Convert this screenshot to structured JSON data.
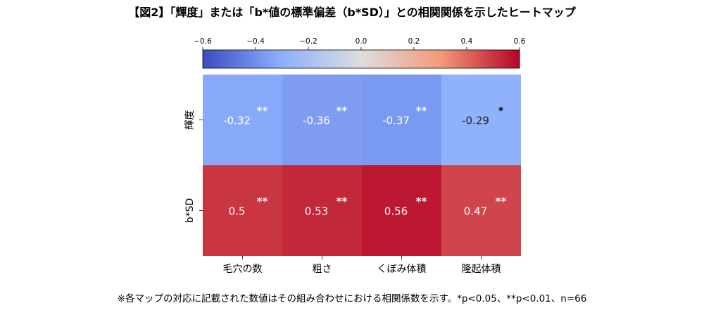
{
  "title": "【図2】「輝度」または「b*値の標準偏差（b*SD）」との相関関係を示したヒートマップ",
  "footnote": "※各マップの対応に記載された数値はその組み合わせにおける相関係数を示す。*p<0.05、**p<0.01、n=66",
  "chart_data": {
    "type": "heatmap",
    "colormap": "coolwarm",
    "colorbar": {
      "ticks": [
        "-0.6",
        "-0.4",
        "-0.2",
        "0.0",
        "0.2",
        "0.4",
        "0.6"
      ],
      "range": [
        -0.6,
        0.6
      ]
    },
    "columns": [
      "毛穴の数",
      "粗さ",
      "くぼみ体積",
      "隆起体積"
    ],
    "rows": [
      "輝度",
      "b*SD"
    ],
    "values": [
      [
        -0.32,
        -0.36,
        -0.37,
        -0.29
      ],
      [
        0.5,
        0.53,
        0.56,
        0.47
      ]
    ],
    "value_labels": [
      [
        "-0.32",
        "-0.36",
        "-0.37",
        "-0.29"
      ],
      [
        "0.5",
        "0.53",
        "0.56",
        "0.47"
      ]
    ],
    "significance": [
      [
        "**",
        "**",
        "**",
        "*"
      ],
      [
        "**",
        "**",
        "**",
        "**"
      ]
    ]
  }
}
